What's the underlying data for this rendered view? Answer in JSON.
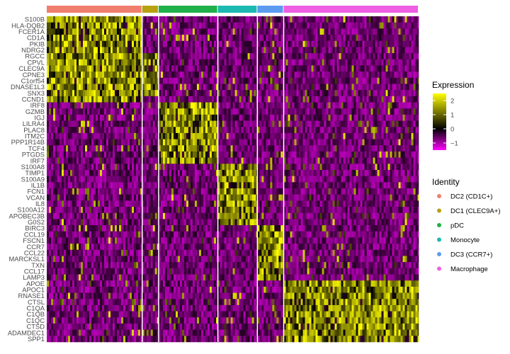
{
  "chart_data": {
    "type": "heatmap",
    "genes": [
      "S100B",
      "HLA-DQB2",
      "FCER1A",
      "CD1A",
      "PKIB",
      "NDRG2",
      "RGCC",
      "CPVL",
      "CLEC9A",
      "CPNE3",
      "C1orf54",
      "DNASE1L3",
      "SNX3",
      "CCND1",
      "IRF8",
      "GZMB",
      "IGJ",
      "LILRA4",
      "PLAC8",
      "ITM2C",
      "PPP1R14B",
      "TCF4",
      "PTGDS",
      "IRF7",
      "S100A8",
      "TIMP1",
      "S100A9",
      "IL1B",
      "FCN1",
      "VCAN",
      "IL8",
      "S100A12",
      "APOBEC3B",
      "G0S2",
      "BIRC3",
      "CCL19",
      "FSCN1",
      "CCR7",
      "CCL22",
      "MARCKSL1",
      "TXN",
      "CCL17",
      "LAMP3",
      "APOE",
      "APOC1",
      "RNASE1",
      "CTSL",
      "C1QA",
      "C1QB",
      "C1QC",
      "CTSD",
      "ADAMDEC1",
      "SPP1"
    ],
    "identity_groups": [
      {
        "name": "DC2 (CD1C+)",
        "color": "#F07E6E",
        "cells": 145,
        "marker_genes": [
          0,
          13
        ]
      },
      {
        "name": "DC1 (CLEC9A+)",
        "color": "#B8A110",
        "cells": 25,
        "marker_genes": [
          6,
          12
        ]
      },
      {
        "name": "pDC",
        "color": "#20B04A",
        "cells": 90,
        "marker_genes": [
          14,
          23
        ]
      },
      {
        "name": "Monocyte",
        "color": "#1CB9B0",
        "cells": 60,
        "marker_genes": [
          24,
          33
        ]
      },
      {
        "name": "DC3 (CCR7+)",
        "color": "#5C9BF0",
        "cells": 40,
        "marker_genes": [
          34,
          42
        ]
      },
      {
        "name": "Macrophage",
        "color": "#EE5FE3",
        "cells": 205,
        "marker_genes": [
          43,
          52
        ]
      }
    ],
    "color_scale": {
      "title": "Expression",
      "range": [
        -1.5,
        2.5
      ],
      "ticks": [
        2,
        1,
        0,
        -1
      ],
      "stops": [
        {
          "value": -1.5,
          "color": "#FF00FF"
        },
        {
          "value": 0,
          "color": "#000000"
        },
        {
          "value": 2.5,
          "color": "#FFFF00"
        }
      ]
    },
    "legend_title": "Identity",
    "legend_position": "right"
  }
}
